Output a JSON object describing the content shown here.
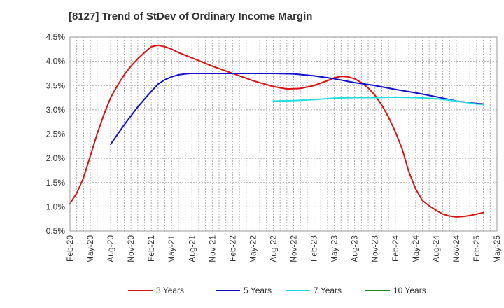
{
  "chart_data": {
    "type": "line",
    "title": "[8127]  Trend of StDev of Ordinary Income Margin",
    "xlabel": "",
    "ylabel": "",
    "y_ticks": [
      "0.5%",
      "1.0%",
      "1.5%",
      "2.0%",
      "2.5%",
      "3.0%",
      "3.5%",
      "4.0%",
      "4.5%"
    ],
    "ylim": [
      0.5,
      4.5
    ],
    "x_ticks": [
      "Feb-20",
      "May-20",
      "Aug-20",
      "Nov-20",
      "Feb-21",
      "May-21",
      "Aug-21",
      "Nov-21",
      "Feb-22",
      "May-22",
      "Aug-22",
      "Nov-22",
      "Feb-23",
      "May-23",
      "Aug-23",
      "Nov-23",
      "Feb-24",
      "May-24",
      "Aug-24",
      "Nov-24",
      "Feb-25",
      "May-25"
    ],
    "grid": true,
    "legend_position": "bottom",
    "series": [
      {
        "name": "3 Years",
        "color": "#dd1111",
        "points": [
          [
            0,
            1.07
          ],
          [
            1,
            1.28
          ],
          [
            2,
            1.6
          ],
          [
            3,
            2.05
          ],
          [
            4,
            2.5
          ],
          [
            5,
            2.9
          ],
          [
            6,
            3.25
          ],
          [
            7,
            3.5
          ],
          [
            8,
            3.72
          ],
          [
            9,
            3.9
          ],
          [
            10,
            4.05
          ],
          [
            11,
            4.18
          ],
          [
            12,
            4.3
          ],
          [
            13,
            4.33
          ],
          [
            14,
            4.3
          ],
          [
            15,
            4.25
          ],
          [
            16,
            4.18
          ],
          [
            18,
            4.07
          ],
          [
            21,
            3.9
          ],
          [
            24,
            3.75
          ],
          [
            27,
            3.6
          ],
          [
            30,
            3.48
          ],
          [
            32,
            3.43
          ],
          [
            34,
            3.44
          ],
          [
            36,
            3.5
          ],
          [
            38,
            3.6
          ],
          [
            39,
            3.66
          ],
          [
            40,
            3.69
          ],
          [
            41,
            3.68
          ],
          [
            42,
            3.64
          ],
          [
            43,
            3.56
          ],
          [
            44,
            3.45
          ],
          [
            45,
            3.3
          ],
          [
            46,
            3.1
          ],
          [
            47,
            2.85
          ],
          [
            48,
            2.55
          ],
          [
            49,
            2.2
          ],
          [
            50,
            1.72
          ],
          [
            51,
            1.37
          ],
          [
            52,
            1.13
          ],
          [
            53,
            1.02
          ],
          [
            54,
            0.93
          ],
          [
            55,
            0.85
          ],
          [
            56,
            0.81
          ],
          [
            57,
            0.79
          ],
          [
            58,
            0.8
          ],
          [
            59,
            0.82
          ],
          [
            60,
            0.85
          ],
          [
            61,
            0.88
          ]
        ]
      },
      {
        "name": "5 Years",
        "color": "#1111cc",
        "points": [
          [
            6,
            2.29
          ],
          [
            8,
            2.69
          ],
          [
            10,
            3.06
          ],
          [
            12,
            3.38
          ],
          [
            13,
            3.53
          ],
          [
            14,
            3.62
          ],
          [
            15,
            3.68
          ],
          [
            16,
            3.72
          ],
          [
            17,
            3.74
          ],
          [
            18,
            3.75
          ],
          [
            21,
            3.75
          ],
          [
            27,
            3.75
          ],
          [
            30,
            3.75
          ],
          [
            33,
            3.74
          ],
          [
            36,
            3.7
          ],
          [
            39,
            3.64
          ],
          [
            42,
            3.56
          ],
          [
            45,
            3.5
          ],
          [
            48,
            3.42
          ],
          [
            51,
            3.35
          ],
          [
            54,
            3.27
          ],
          [
            57,
            3.18
          ],
          [
            60,
            3.13
          ],
          [
            61,
            3.12
          ]
        ]
      },
      {
        "name": "7 Years",
        "color": "#22dddd",
        "points": [
          [
            30,
            3.18
          ],
          [
            33,
            3.19
          ],
          [
            36,
            3.21
          ],
          [
            39,
            3.24
          ],
          [
            42,
            3.25
          ],
          [
            45,
            3.25
          ],
          [
            48,
            3.26
          ],
          [
            51,
            3.25
          ],
          [
            54,
            3.23
          ],
          [
            57,
            3.18
          ],
          [
            60,
            3.12
          ],
          [
            61,
            3.11
          ]
        ]
      },
      {
        "name": "10 Years",
        "color": "#228822",
        "points": []
      }
    ]
  }
}
